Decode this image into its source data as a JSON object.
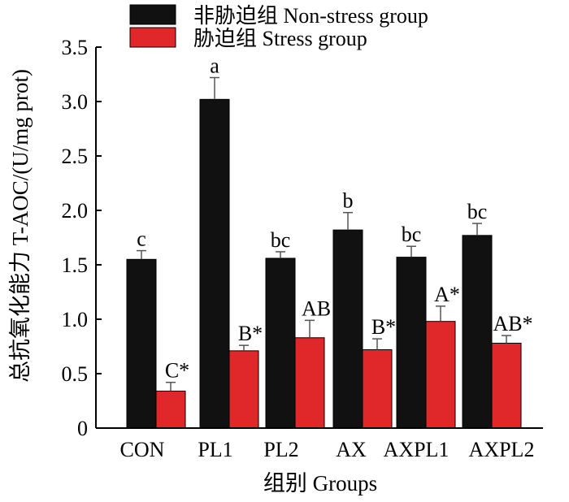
{
  "chart_data": {
    "type": "bar",
    "categories": [
      "CON",
      "PL1",
      "PL2",
      "AX",
      "AXPL1",
      "AXPL2"
    ],
    "series": [
      {
        "name": "非胁迫组  Non-stress group",
        "color": "#111111",
        "values": [
          1.55,
          3.02,
          1.56,
          1.82,
          1.57,
          1.77
        ],
        "errors": [
          0.08,
          0.2,
          0.06,
          0.16,
          0.1,
          0.11
        ],
        "labels": [
          "c",
          "a",
          "bc",
          "b",
          "bc",
          "bc"
        ]
      },
      {
        "name": "胁迫组  Stress group",
        "color": "#e0282a",
        "values": [
          0.34,
          0.71,
          0.83,
          0.72,
          0.98,
          0.78
        ],
        "errors": [
          0.08,
          0.05,
          0.16,
          0.1,
          0.14,
          0.07
        ],
        "labels": [
          "C*",
          "B*",
          "AB",
          "B*",
          "A*",
          "AB*"
        ]
      }
    ],
    "xlabel": "组别  Groups",
    "ylabel": "总抗氧化能力  T-AOC/(U/mg prot)",
    "ylim": [
      0,
      3.5
    ],
    "yticks": [
      0,
      0.5,
      1.0,
      1.5,
      2.0,
      2.5,
      3.0,
      3.5
    ],
    "ytick_labels": [
      "0",
      "0.5",
      "1.0",
      "1.5",
      "2.0",
      "2.5",
      "3.0",
      "3.5"
    ],
    "grid": false,
    "legend_position": "top"
  }
}
